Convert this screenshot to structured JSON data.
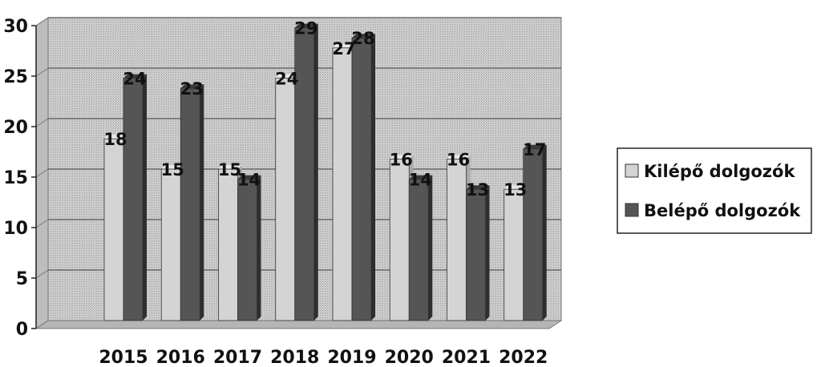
{
  "chart_data": {
    "type": "bar",
    "categories": [
      "2015",
      "2016",
      "2017",
      "2018",
      "2019",
      "2020",
      "2021",
      "2022"
    ],
    "series": [
      {
        "name": "Kilépő dolgozók",
        "values": [
          18,
          15,
          15,
          24,
          27,
          16,
          16,
          13
        ],
        "color": "#d4d4d4"
      },
      {
        "name": "Belépő dolgozók",
        "values": [
          24,
          23,
          14,
          29,
          28,
          14,
          13,
          17
        ],
        "color": "#555555"
      }
    ],
    "yticks": [
      "0",
      "5",
      "10",
      "15",
      "20",
      "25",
      "30"
    ],
    "ylim": [
      0,
      30
    ],
    "grid": true,
    "legend": "right",
    "plot_background": "#c8c8c8"
  }
}
